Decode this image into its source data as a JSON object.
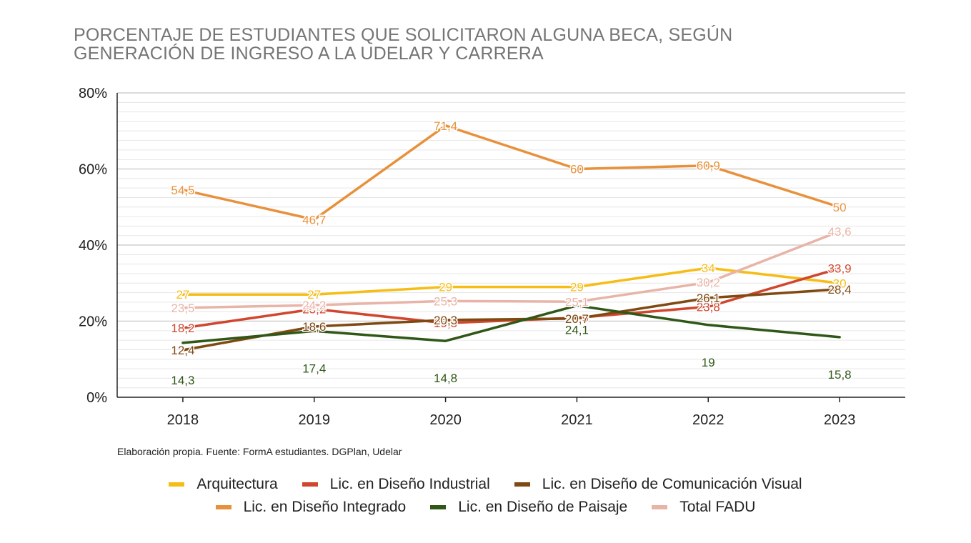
{
  "chart_data": {
    "type": "line",
    "title": [
      "PORCENTAJE DE ESTUDIANTES QUE SOLICITARON ALGUNA BECA, SEGÚN",
      "GENERACIÓN DE INGRESO A LA UDELAR Y CARRERA"
    ],
    "xlabel": "",
    "ylabel": "",
    "categories": [
      "2018",
      "2019",
      "2020",
      "2021",
      "2022",
      "2023"
    ],
    "ylim": [
      0,
      80
    ],
    "yticks": [
      0,
      20,
      40,
      60,
      80
    ],
    "ytick_labels": [
      "0%",
      "20%",
      "40%",
      "60%",
      "80%"
    ],
    "grid": true,
    "legend_position": "bottom",
    "series": [
      {
        "name": "Arquitectura",
        "color": "#F6BD16",
        "values": [
          27,
          27,
          29,
          29,
          34,
          30
        ],
        "labels": [
          "27",
          "27",
          "29",
          "29",
          "34",
          "30"
        ]
      },
      {
        "name": "Lic. en Diseño Industrial",
        "color": "#D0462E",
        "values": [
          18.2,
          23.2,
          19.5,
          20.9,
          23.8,
          33.9
        ],
        "labels": [
          "18,2",
          "23,2",
          "19,5",
          "20,9",
          "23,8",
          "33,9"
        ]
      },
      {
        "name": "Lic. en Diseño de Comunicación Visual",
        "color": "#7F4A12",
        "values": [
          12.4,
          18.6,
          20.3,
          20.7,
          26.1,
          28.4
        ],
        "labels": [
          "12,4",
          "18,6",
          "20,3",
          "20,7",
          "26,1",
          "28,4"
        ]
      },
      {
        "name": "Lic. en Diseño Integrado",
        "color": "#E8913C",
        "values": [
          54.5,
          46.7,
          71.4,
          60,
          60.9,
          50
        ],
        "labels": [
          "54,5",
          "46,7",
          "71,4",
          "60",
          "60,9",
          "50"
        ]
      },
      {
        "name": "Lic. en Diseño de Paisaje",
        "color": "#2F5716",
        "values": [
          14.3,
          17.4,
          14.8,
          24.1,
          19,
          15.8
        ],
        "labels": [
          "14,3",
          "17,4",
          "14,8",
          "24,1",
          "19",
          "15,8"
        ]
      },
      {
        "name": "Total FADU",
        "color": "#E8B4A8",
        "values": [
          23.5,
          24.2,
          25.3,
          25.1,
          30.2,
          43.6
        ],
        "labels": [
          "23,5",
          "24,2",
          "25,3",
          "25,1",
          "30,2",
          "43,6"
        ]
      }
    ]
  },
  "footer": {
    "source": "Elaboración propia. Fuente: FormA estudiantes. DGPlan, Udelar"
  }
}
